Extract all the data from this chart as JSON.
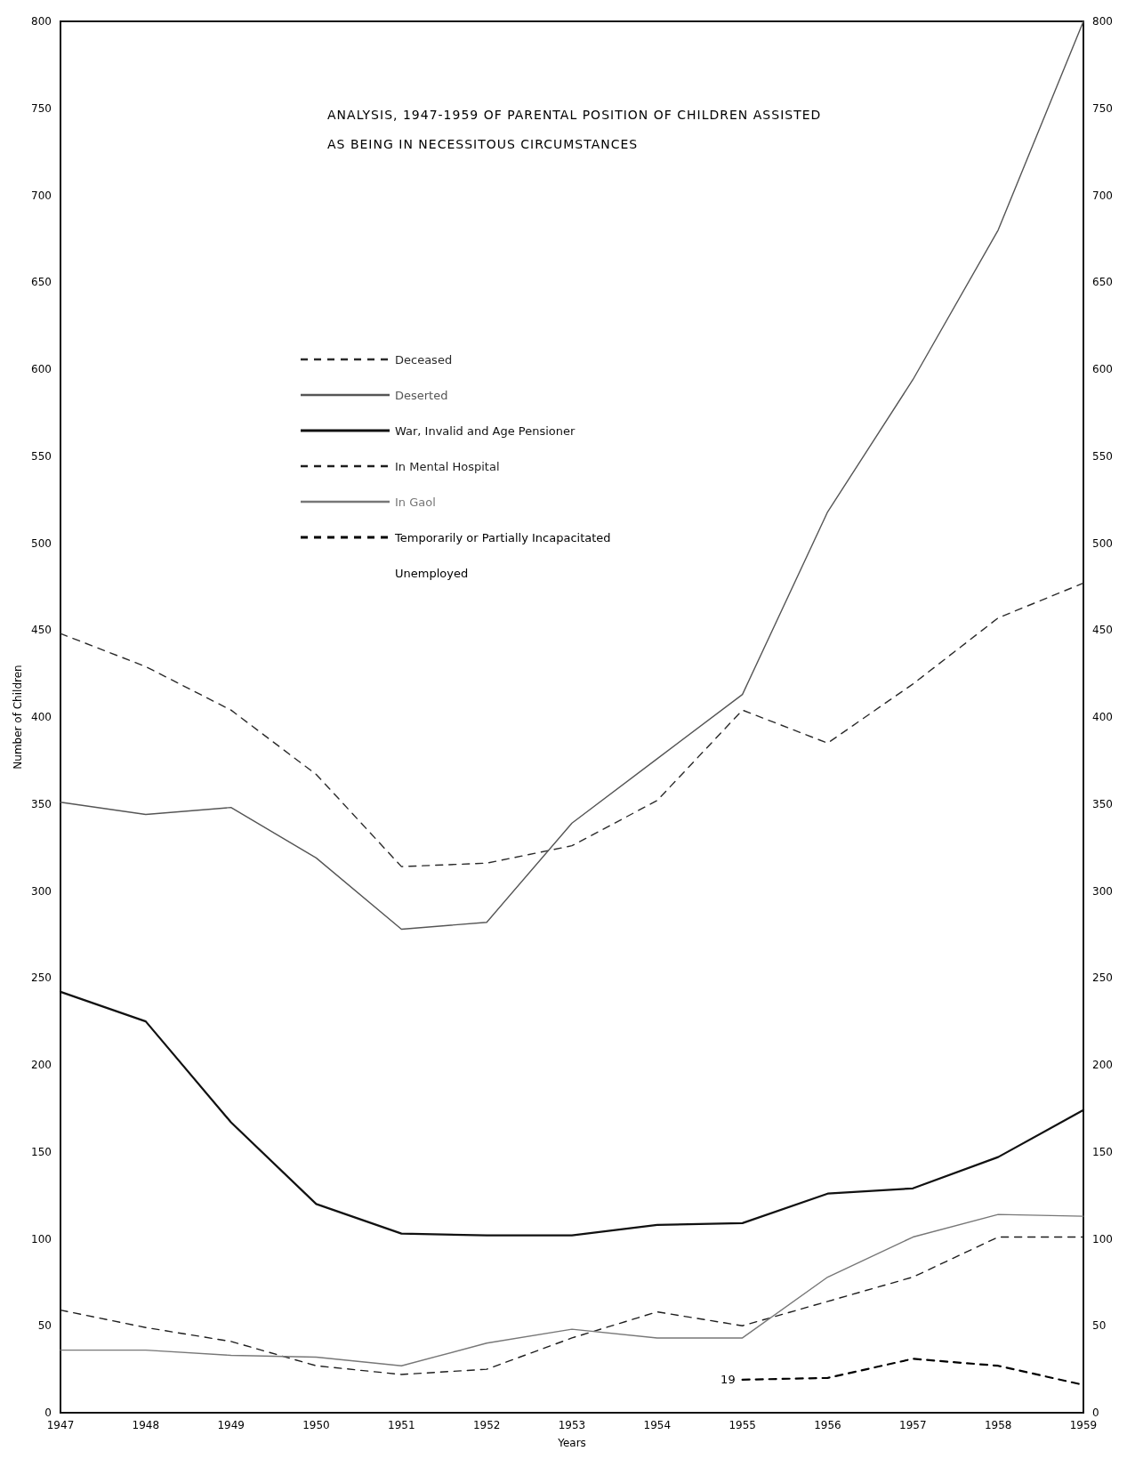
{
  "chart_data": {
    "type": "line",
    "title": "ANALYSIS, 1947-1959 OF PARENTAL POSITION OF CHILDREN ASSISTED\nAS BEING IN NECESSITOUS CIRCUMSTANCES",
    "xlabel": "Years",
    "ylabel": "Number of Children",
    "categories": [
      "1947",
      "1948",
      "1949",
      "1950",
      "1951",
      "1952",
      "1953",
      "1954",
      "1955",
      "1956",
      "1957",
      "1958",
      "1959"
    ],
    "series": [
      {
        "name": "Deceased",
        "color": "#2a2a2a",
        "line_style": "dashed",
        "values": [
          448,
          429,
          404,
          367,
          314,
          316,
          326,
          352,
          404,
          385,
          419,
          457,
          477
        ]
      },
      {
        "name": "Deserted",
        "color": "#555555",
        "line_style": "solid",
        "values": [
          351,
          344,
          348,
          319,
          278,
          282,
          339,
          376,
          413,
          518,
          594,
          680,
          800
        ]
      },
      {
        "name": "War, Invalid and Age Pensioner",
        "color": "#111111",
        "line_style": "solid",
        "values": [
          242,
          225,
          167,
          120,
          103,
          102,
          102,
          108,
          109,
          126,
          129,
          147,
          174
        ]
      },
      {
        "name": "In Mental Hospital",
        "color": "#1e1e1e",
        "line_style": "dashed",
        "values": [
          59,
          49,
          41,
          27,
          22,
          25,
          43,
          58,
          50,
          64,
          78,
          101,
          101
        ]
      },
      {
        "name": "In Gaol",
        "color": "#777777",
        "line_style": "solid",
        "values": [
          36,
          36,
          33,
          32,
          27,
          40,
          48,
          43,
          43,
          78,
          101,
          114,
          113
        ]
      },
      {
        "name": "Temporarily or Partially Incapacitated",
        "color": "#000000",
        "line_style": "dashed",
        "values": [
          null,
          null,
          null,
          null,
          null,
          null,
          null,
          null,
          19,
          20,
          31,
          27,
          16
        ]
      }
    ],
    "annotations": [
      "Unemployed",
      {
        "text": "19",
        "x": "1955",
        "y": 19
      }
    ],
    "ylim": [
      0,
      800
    ],
    "yticks": [
      0,
      50,
      100,
      150,
      200,
      250,
      300,
      350,
      400,
      450,
      500,
      550,
      600,
      650,
      700,
      750,
      800
    ],
    "y2lim": [
      0,
      800
    ],
    "y2ticks": [
      0,
      50,
      100,
      150,
      200,
      250,
      300,
      350,
      400,
      450,
      500,
      550,
      600,
      650,
      700,
      750,
      800
    ],
    "legend": "top",
    "grid": false
  }
}
